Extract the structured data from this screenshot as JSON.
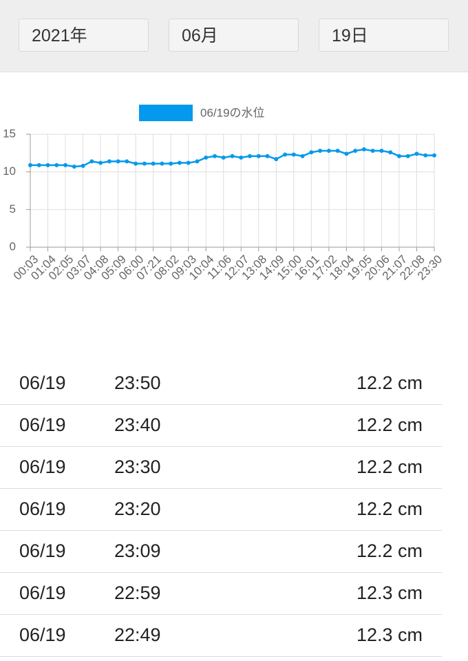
{
  "header": {
    "year": "2021年",
    "month": "06月",
    "day": "19日"
  },
  "chart_data": {
    "type": "line",
    "categories": [
      "00:03",
      null,
      "01:04",
      null,
      "02:05",
      null,
      "03:07",
      null,
      "04:08",
      null,
      "05:09",
      null,
      "06:00",
      null,
      "07:21",
      null,
      "08:02",
      null,
      "09:03",
      null,
      "10:04",
      null,
      "11:06",
      null,
      "12:07",
      null,
      "13:08",
      null,
      "14:09",
      null,
      "15:00",
      null,
      "16:01",
      null,
      "17:02",
      null,
      "18:04",
      null,
      "19:05",
      null,
      "20:06",
      null,
      "21:07",
      null,
      "22:08",
      null,
      "23:30"
    ],
    "series": [
      {
        "name": "06/19の水位",
        "color": "#0399ee",
        "values": [
          10.9,
          10.9,
          10.9,
          10.9,
          10.9,
          10.7,
          10.8,
          11.4,
          11.2,
          11.4,
          11.4,
          11.4,
          11.1,
          11.1,
          11.1,
          11.1,
          11.1,
          11.2,
          11.2,
          11.4,
          11.9,
          12.1,
          11.9,
          12.1,
          11.9,
          12.1,
          12.1,
          12.1,
          11.7,
          12.3,
          12.3,
          12.1,
          12.6,
          12.8,
          12.8,
          12.8,
          12.4,
          12.8,
          13.0,
          12.8,
          12.8,
          12.6,
          12.1,
          12.1,
          12.4,
          12.2,
          12.2
        ]
      }
    ],
    "ylim": [
      0,
      15
    ],
    "yticks": [
      0,
      5,
      10,
      15
    ],
    "grid": true,
    "legend": "top"
  },
  "table": {
    "rows": [
      [
        "06/19",
        "23:50",
        "12.2 cm"
      ],
      [
        "06/19",
        "23:40",
        "12.2 cm"
      ],
      [
        "06/19",
        "23:30",
        "12.2 cm"
      ],
      [
        "06/19",
        "23:20",
        "12.2 cm"
      ],
      [
        "06/19",
        "23:09",
        "12.2 cm"
      ],
      [
        "06/19",
        "22:59",
        "12.3 cm"
      ],
      [
        "06/19",
        "22:49",
        "12.3 cm"
      ]
    ]
  }
}
